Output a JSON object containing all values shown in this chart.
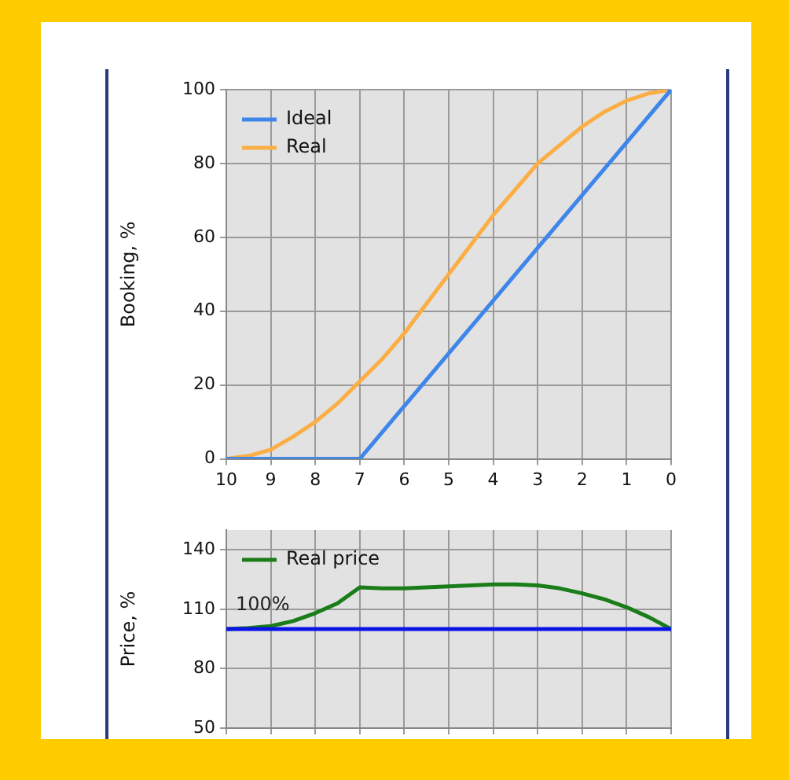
{
  "chart_data": [
    {
      "type": "line",
      "ylabel": "Booking, %",
      "xlim": [
        10,
        0
      ],
      "xticks": [
        10,
        9,
        8,
        7,
        6,
        5,
        4,
        3,
        2,
        1,
        0
      ],
      "ylim": [
        0,
        100
      ],
      "yticks": [
        0,
        20,
        40,
        60,
        80,
        100
      ],
      "grid": true,
      "legend": "top left",
      "marker": "none",
      "series": [
        {
          "name": "Ideal",
          "color": "#3f86ea",
          "x": [
            10,
            7,
            0
          ],
          "values": [
            0,
            0,
            100
          ]
        },
        {
          "name": "Real",
          "color": "#fbae44",
          "x": [
            10,
            9.5,
            9,
            8.5,
            8,
            7.5,
            7,
            6.5,
            6,
            5.5,
            5,
            4.5,
            4,
            3.5,
            3,
            2.5,
            2,
            1.5,
            1,
            0.5,
            0
          ],
          "values": [
            0,
            0.8,
            2.5,
            6,
            10,
            15,
            21,
            27,
            34,
            42,
            50,
            58,
            66,
            73,
            80,
            85,
            90,
            94,
            97,
            99,
            100
          ]
        }
      ]
    },
    {
      "type": "line",
      "ylabel": "Price, %",
      "xlim": [
        10,
        0
      ],
      "xticks": [
        10,
        9,
        8,
        7,
        6,
        5,
        4,
        3,
        2,
        1,
        0
      ],
      "ylim": [
        50,
        150
      ],
      "yticks": [
        50,
        80,
        110,
        140
      ],
      "grid": true,
      "legend": "top left",
      "marker": "none",
      "tick_labels": "y",
      "ref_lines": [
        {
          "axis": "y",
          "value": 100,
          "label": "100%",
          "color": "#0a14e6"
        }
      ],
      "series": [
        {
          "name": "Real price",
          "color": "#1a7d1a",
          "x": [
            10,
            9.5,
            9,
            8.5,
            8,
            7.5,
            7,
            6.5,
            6,
            5.5,
            5,
            4.5,
            4,
            3.5,
            3,
            2.5,
            2,
            1.5,
            1,
            0.5,
            0
          ],
          "values": [
            100,
            100.5,
            101.5,
            104,
            108,
            113,
            121,
            120.5,
            120.5,
            121,
            121.5,
            122,
            122.5,
            122.5,
            122,
            120.5,
            118,
            115,
            111,
            106,
            100
          ]
        }
      ]
    }
  ]
}
